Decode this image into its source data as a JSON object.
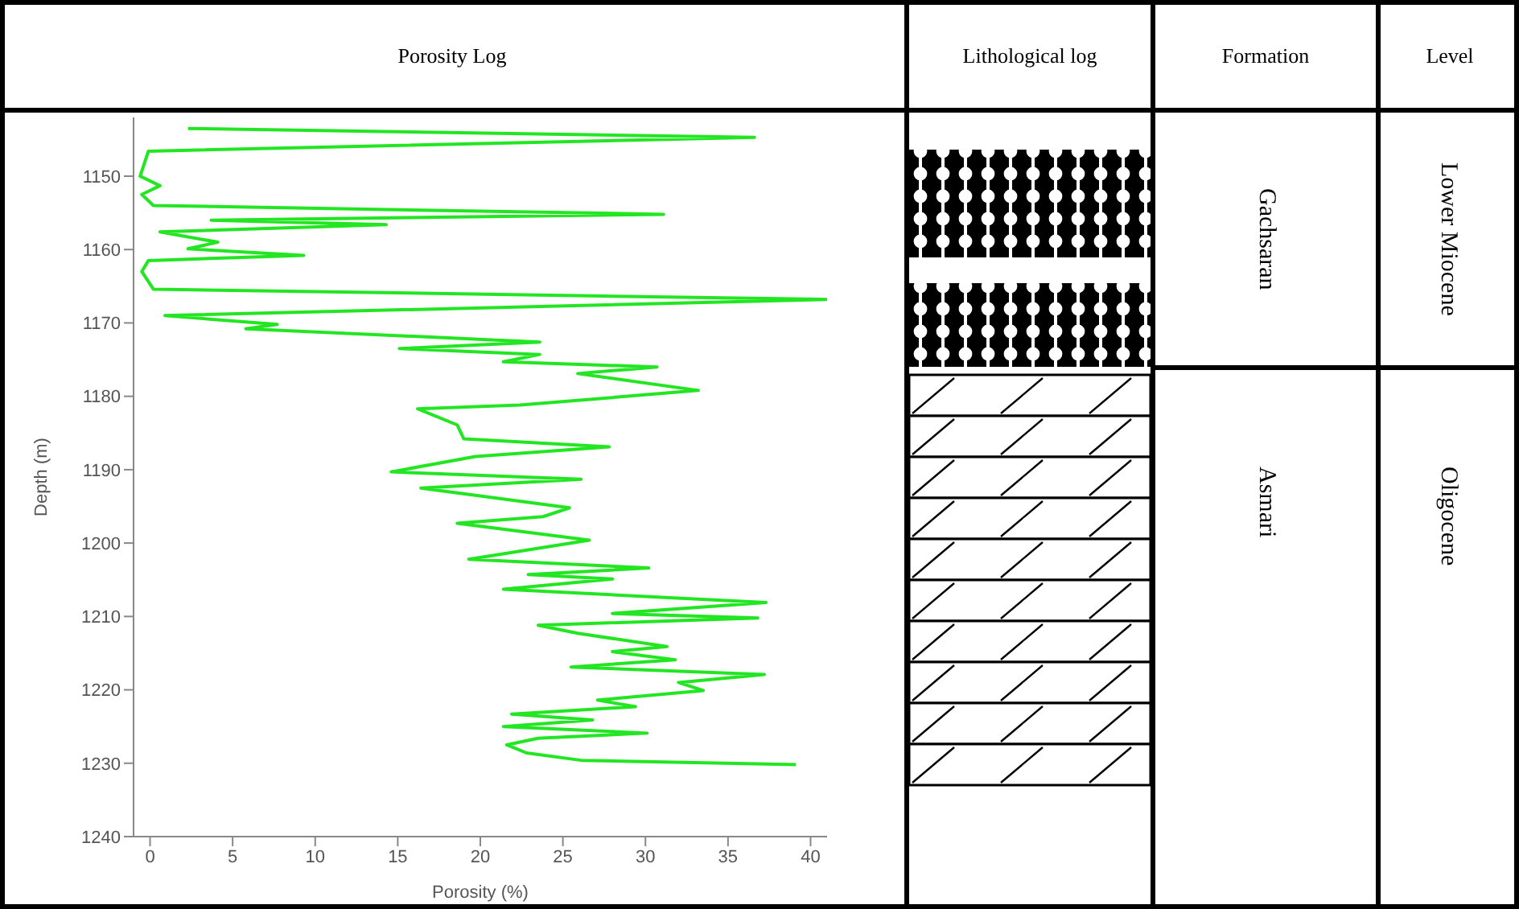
{
  "chart_data": {
    "type": "line",
    "title": "Porosity Log",
    "xlabel": "Porosity (%)",
    "ylabel": "Depth (m)",
    "xlim": [
      -1,
      41
    ],
    "xticks": [
      0,
      5,
      10,
      15,
      20,
      25,
      30,
      35,
      40
    ],
    "ylim": [
      1240,
      1142
    ],
    "yticks": [
      1150,
      1160,
      1170,
      1180,
      1190,
      1200,
      1210,
      1220,
      1230,
      1240
    ],
    "marker": "none",
    "annotations": [
      "Lithological log",
      "Formation",
      "Level",
      "Gachsaran",
      "Lower Miocene",
      "Asmari",
      "Oligocene"
    ],
    "series": [
      {
        "color": "#22e622",
        "x": [
          2.3,
          36.6,
          -0.1,
          -0.6,
          0.6,
          -0.5,
          0.2,
          31.1,
          3.7,
          14.3,
          0.6,
          4.1,
          2.3,
          9.3,
          -0.1,
          -0.5,
          0.2,
          41,
          0.9,
          7.7,
          5.8,
          23.6,
          15.1,
          23.6,
          21.4,
          30.7,
          25.9,
          33.2,
          22.4,
          16.2,
          18.6,
          19.0,
          27.8,
          19.7,
          14.6,
          26.1,
          16.4,
          22.1,
          25.4,
          23.8,
          18.6,
          26.6,
          19.3,
          30.2,
          22.9,
          28.0,
          21.4,
          37.3,
          28.0,
          36.8,
          23.5,
          25.9,
          31.3,
          28.0,
          31.8,
          25.5,
          37.2,
          32.0,
          33.5,
          27.1,
          29.4,
          21.9,
          26.8,
          21.4,
          30.1,
          23.5,
          21.6,
          22.8,
          26.1,
          39.1
        ],
        "values": [
          1143.5,
          1144.7,
          1146.6,
          1150,
          1151.3,
          1152.5,
          1154,
          1155.2,
          1156,
          1156.6,
          1157.6,
          1159,
          1159.9,
          1160.8,
          1161.5,
          1163,
          1165.4,
          1166.8,
          1169,
          1170.2,
          1170.8,
          1172.6,
          1173.5,
          1174.3,
          1175.3,
          1176,
          1176.9,
          1179.2,
          1181.2,
          1181.7,
          1183.9,
          1185.8,
          1186.9,
          1188.2,
          1190.3,
          1191.3,
          1192.5,
          1194.2,
          1195.2,
          1196.4,
          1197.3,
          1199.6,
          1202.2,
          1203.4,
          1204.3,
          1204.9,
          1206.3,
          1208.1,
          1209.6,
          1210.2,
          1211.2,
          1212.3,
          1214.1,
          1214.8,
          1215.9,
          1216.9,
          1217.9,
          1219.0,
          1220.1,
          1221.4,
          1222.3,
          1223.3,
          1224.1,
          1225.0,
          1225.9,
          1226.6,
          1227.5,
          1228.6,
          1229.6,
          1230.2
        ]
      }
    ]
  }
}
